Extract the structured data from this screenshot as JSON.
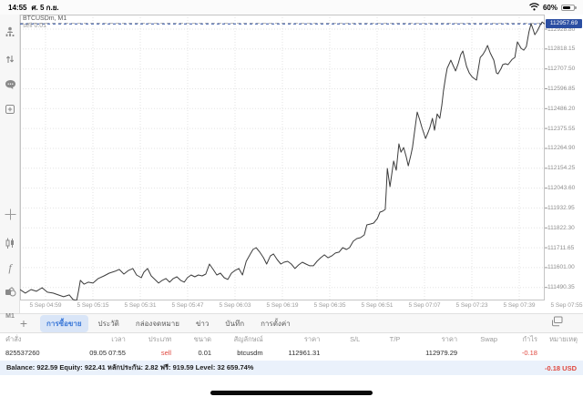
{
  "status_bar": {
    "time": "14:55",
    "date": "ศ. 5 ก.ย.",
    "battery_percent": "60%",
    "icons": [
      "wifi-icon",
      "battery-icon"
    ]
  },
  "chart": {
    "symbol_label": "BTCUSDm, M1",
    "position_label": "sell 0.01"
  },
  "sidebar": {
    "icons": [
      "account-icon",
      "trade-arrows-icon",
      "chat-icon",
      "new-order-icon",
      "crosshair-icon",
      "chart-type-icon",
      "indicators-icon",
      "objects-icon"
    ],
    "timeframe_label": "M1"
  },
  "chart_data": {
    "type": "line",
    "title": "BTCUSDm, M1",
    "legend": "none",
    "grid": "dotted",
    "ylim": [
      111418,
      113010
    ],
    "y_ticks": [
      112928.8,
      112818.15,
      112707.5,
      112596.85,
      112486.2,
      112375.55,
      112264.9,
      112154.25,
      112043.6,
      111932.95,
      111822.3,
      111711.65,
      111601.0,
      111490.35
    ],
    "x_ticks": [
      "5 Sep 04:59",
      "5 Sep 05:15",
      "5 Sep 05:31",
      "5 Sep 05:47",
      "5 Sep 06:03",
      "5 Sep 06:19",
      "5 Sep 06:35",
      "5 Sep 06:51",
      "5 Sep 07:07",
      "5 Sep 07:23",
      "5 Sep 07:39",
      "5 Sep 07:55"
    ],
    "x_first_frac": 0.0486,
    "x_step_frac": 0.09028,
    "current_price": 112957.69,
    "position": {
      "type": "sell",
      "volume": 0.01,
      "price": 112961.31
    },
    "points": [
      [
        0.0,
        111479
      ],
      [
        0.01,
        111459
      ],
      [
        0.021,
        111479
      ],
      [
        0.031,
        111469
      ],
      [
        0.042,
        111489
      ],
      [
        0.052,
        111464
      ],
      [
        0.063,
        111459
      ],
      [
        0.073,
        111449
      ],
      [
        0.083,
        111439
      ],
      [
        0.094,
        111449
      ],
      [
        0.101,
        111423
      ],
      [
        0.108,
        111418
      ],
      [
        0.112,
        111479
      ],
      [
        0.115,
        111530
      ],
      [
        0.122,
        111509
      ],
      [
        0.13,
        111520
      ],
      [
        0.139,
        111515
      ],
      [
        0.149,
        111540
      ],
      [
        0.16,
        111555
      ],
      [
        0.17,
        111570
      ],
      [
        0.181,
        111581
      ],
      [
        0.189,
        111591
      ],
      [
        0.198,
        111565
      ],
      [
        0.207,
        111586
      ],
      [
        0.215,
        111596
      ],
      [
        0.222,
        111560
      ],
      [
        0.231,
        111545
      ],
      [
        0.236,
        111575
      ],
      [
        0.243,
        111596
      ],
      [
        0.25,
        111555
      ],
      [
        0.257,
        111535
      ],
      [
        0.264,
        111515
      ],
      [
        0.271,
        111530
      ],
      [
        0.278,
        111540
      ],
      [
        0.285,
        111520
      ],
      [
        0.292,
        111540
      ],
      [
        0.299,
        111550
      ],
      [
        0.306,
        111530
      ],
      [
        0.313,
        111520
      ],
      [
        0.319,
        111545
      ],
      [
        0.326,
        111560
      ],
      [
        0.333,
        111550
      ],
      [
        0.34,
        111560
      ],
      [
        0.347,
        111555
      ],
      [
        0.354,
        111565
      ],
      [
        0.361,
        111621
      ],
      [
        0.368,
        111591
      ],
      [
        0.375,
        111560
      ],
      [
        0.382,
        111570
      ],
      [
        0.389,
        111545
      ],
      [
        0.396,
        111535
      ],
      [
        0.403,
        111570
      ],
      [
        0.41,
        111586
      ],
      [
        0.417,
        111596
      ],
      [
        0.424,
        111560
      ],
      [
        0.431,
        111636
      ],
      [
        0.438,
        111672
      ],
      [
        0.444,
        111702
      ],
      [
        0.45,
        111712
      ],
      [
        0.457,
        111687
      ],
      [
        0.464,
        111656
      ],
      [
        0.47,
        111621
      ],
      [
        0.477,
        111666
      ],
      [
        0.483,
        111677
      ],
      [
        0.49,
        111646
      ],
      [
        0.497,
        111621
      ],
      [
        0.503,
        111631
      ],
      [
        0.51,
        111636
      ],
      [
        0.517,
        111621
      ],
      [
        0.524,
        111596
      ],
      [
        0.531,
        111616
      ],
      [
        0.538,
        111631
      ],
      [
        0.545,
        111621
      ],
      [
        0.552,
        111611
      ],
      [
        0.559,
        111611
      ],
      [
        0.566,
        111636
      ],
      [
        0.573,
        111656
      ],
      [
        0.58,
        111672
      ],
      [
        0.587,
        111656
      ],
      [
        0.594,
        111666
      ],
      [
        0.601,
        111682
      ],
      [
        0.608,
        111687
      ],
      [
        0.615,
        111712
      ],
      [
        0.622,
        111702
      ],
      [
        0.628,
        111712
      ],
      [
        0.635,
        111748
      ],
      [
        0.642,
        111763
      ],
      [
        0.649,
        111768
      ],
      [
        0.656,
        111783
      ],
      [
        0.661,
        111839
      ],
      [
        0.668,
        111844
      ],
      [
        0.674,
        111849
      ],
      [
        0.681,
        111875
      ],
      [
        0.686,
        111910
      ],
      [
        0.691,
        111915
      ],
      [
        0.696,
        111925
      ],
      [
        0.698,
        112027
      ],
      [
        0.7,
        112153
      ],
      [
        0.705,
        112052
      ],
      [
        0.712,
        112194
      ],
      [
        0.717,
        112143
      ],
      [
        0.722,
        112290
      ],
      [
        0.726,
        112244
      ],
      [
        0.731,
        112270
      ],
      [
        0.736,
        112219
      ],
      [
        0.74,
        112168
      ],
      [
        0.745,
        112229
      ],
      [
        0.748,
        112270
      ],
      [
        0.753,
        112381
      ],
      [
        0.757,
        112467
      ],
      [
        0.762,
        112422
      ],
      [
        0.766,
        112381
      ],
      [
        0.773,
        112320
      ],
      [
        0.778,
        112356
      ],
      [
        0.781,
        112381
      ],
      [
        0.786,
        112432
      ],
      [
        0.79,
        112366
      ],
      [
        0.795,
        112457
      ],
      [
        0.8,
        112432
      ],
      [
        0.804,
        112508
      ],
      [
        0.807,
        112584
      ],
      [
        0.811,
        112660
      ],
      [
        0.814,
        112711
      ],
      [
        0.818,
        112736
      ],
      [
        0.821,
        112756
      ],
      [
        0.824,
        112736
      ],
      [
        0.83,
        112696
      ],
      [
        0.835,
        112736
      ],
      [
        0.84,
        112787
      ],
      [
        0.844,
        112807
      ],
      [
        0.851,
        112721
      ],
      [
        0.856,
        112685
      ],
      [
        0.861,
        112665
      ],
      [
        0.865,
        112655
      ],
      [
        0.87,
        112645
      ],
      [
        0.877,
        112771
      ],
      [
        0.882,
        112787
      ],
      [
        0.887,
        112812
      ],
      [
        0.891,
        112838
      ],
      [
        0.896,
        112797
      ],
      [
        0.903,
        112756
      ],
      [
        0.908,
        112685
      ],
      [
        0.911,
        112680
      ],
      [
        0.917,
        112711
      ],
      [
        0.92,
        112731
      ],
      [
        0.925,
        112736
      ],
      [
        0.93,
        112731
      ],
      [
        0.938,
        112761
      ],
      [
        0.943,
        112771
      ],
      [
        0.948,
        112858
      ],
      [
        0.955,
        112822
      ],
      [
        0.96,
        112812
      ],
      [
        0.965,
        112832
      ],
      [
        0.97,
        112914
      ],
      [
        0.974,
        112959
      ],
      [
        0.977,
        112934
      ],
      [
        0.981,
        112898
      ],
      [
        0.986,
        112919
      ],
      [
        0.991,
        112949
      ],
      [
        0.995,
        112969
      ],
      [
        1.0,
        112957.69
      ]
    ]
  },
  "tab_bar": {
    "add_label": "+",
    "tabs": [
      "การซื้อขาย",
      "ประวัติ",
      "กล่องจดหมาย",
      "ข่าว",
      "บันทึก",
      "การตั้งค่า"
    ],
    "selected_index": 0,
    "right_icon": "cascade-windows-icon"
  },
  "table": {
    "headers": [
      "คำสั่ง",
      "เวลา",
      "ประเภท",
      "ขนาด",
      "สัญลักษณ์",
      "ราคา",
      "S/L",
      "T/P",
      "ราคา",
      "Swap",
      "กำไร",
      "หมายเหตุ"
    ],
    "rows": [
      [
        "825537260",
        "09.05 07:55",
        "sell",
        "0.01",
        "btcusdm",
        "112961.31",
        "",
        "",
        "112979.29",
        "",
        "-0.18",
        ""
      ]
    ]
  },
  "summary": {
    "text": "Balance: 922.59 Equity: 922.41 หลักประกัน: 2.82 ฟรี: 919.59 Level: 32 659.74%",
    "profit": "-0.18  USD"
  },
  "colors": {
    "accent_blue": "#3b78d8",
    "badge_navy": "#2b4ea2",
    "loss_red": "#e0483f",
    "line": "#3c3c3c",
    "grid": "#e3e3e3",
    "summary_bg": "#eaf1fb"
  }
}
